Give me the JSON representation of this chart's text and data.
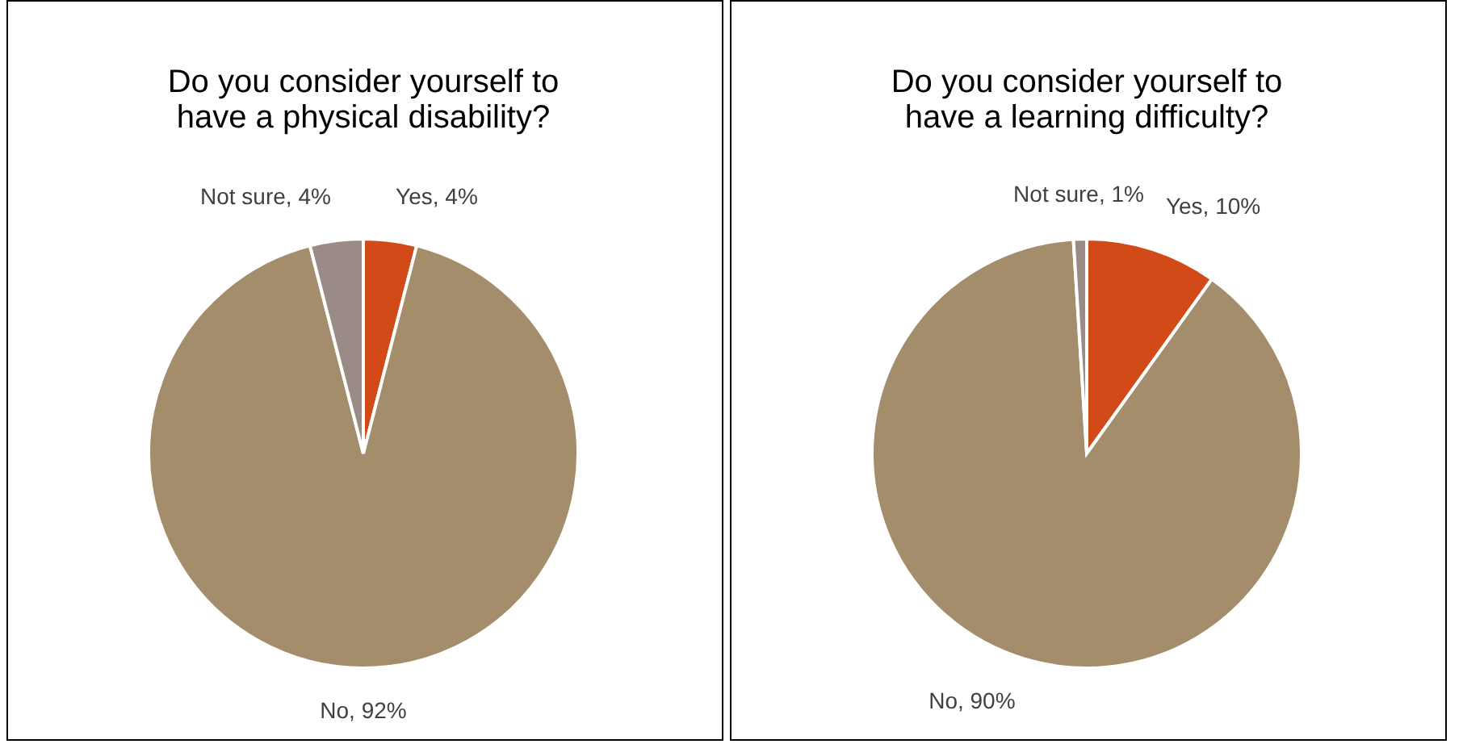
{
  "chart_data": [
    {
      "type": "pie",
      "title": "Do you consider yourself to have a physical disability?",
      "categories": [
        "Yes",
        "No",
        "Not sure"
      ],
      "values": [
        4,
        92,
        4
      ],
      "colors": [
        "#d24a17",
        "#a38d6b",
        "#9b8b87"
      ],
      "value_labels": [
        "4%",
        "92%",
        "4%"
      ]
    },
    {
      "type": "pie",
      "title": "Do you consider yourself to have a learning difficulty?",
      "categories": [
        "Yes",
        "No",
        "Not sure"
      ],
      "values": [
        10,
        90,
        1
      ],
      "colors": [
        "#d24a17",
        "#a38d6b",
        "#9b8b87"
      ],
      "value_labels": [
        "10%",
        "90%",
        "1%"
      ]
    }
  ]
}
